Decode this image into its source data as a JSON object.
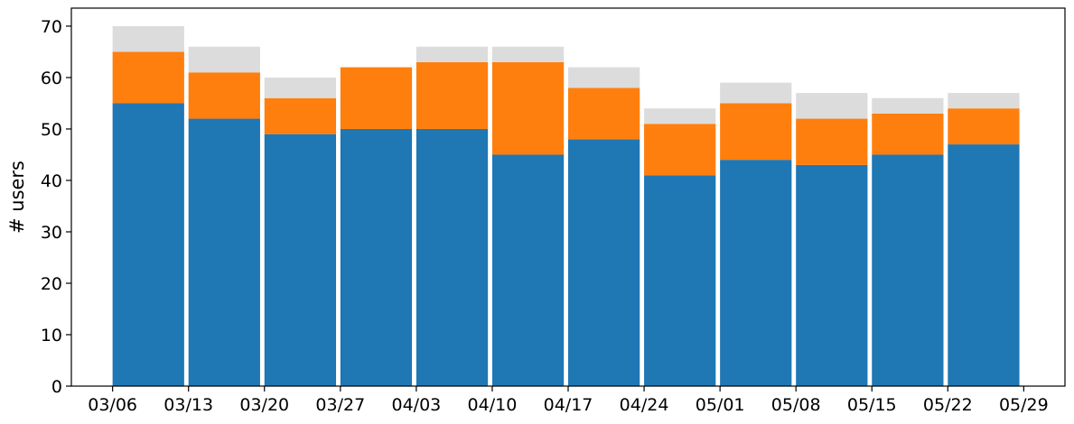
{
  "chart_data": {
    "type": "bar",
    "stacked": true,
    "title": "",
    "xlabel": "",
    "ylabel": "# users",
    "ylim": [
      0,
      73.5
    ],
    "yticks": [
      0,
      10,
      20,
      30,
      40,
      50,
      60,
      70
    ],
    "x_tick_labels": [
      "03/06",
      "03/13",
      "03/20",
      "03/27",
      "04/03",
      "04/10",
      "04/17",
      "04/24",
      "05/01",
      "05/08",
      "05/15",
      "05/22",
      "05/29"
    ],
    "bars_start_date": "03/06",
    "bar_dates": [
      "03/06",
      "03/13",
      "03/20",
      "03/27",
      "04/03",
      "04/10",
      "04/17",
      "04/24",
      "05/01",
      "05/08",
      "05/15",
      "05/22"
    ],
    "bar_width_days": 6.6,
    "grid": false,
    "legend": null,
    "series": [
      {
        "color": "#1f77b4",
        "values": [
          55,
          52,
          49,
          50,
          50,
          45,
          48,
          41,
          44,
          43,
          45,
          47
        ]
      },
      {
        "color": "#ff7f0e",
        "values": [
          10,
          9,
          7,
          12,
          13,
          18,
          10,
          10,
          11,
          9,
          8,
          7
        ]
      },
      {
        "color": "#dcdcdc",
        "values": [
          5,
          5,
          4,
          0,
          3,
          3,
          4,
          3,
          4,
          5,
          3,
          3
        ]
      }
    ]
  }
}
